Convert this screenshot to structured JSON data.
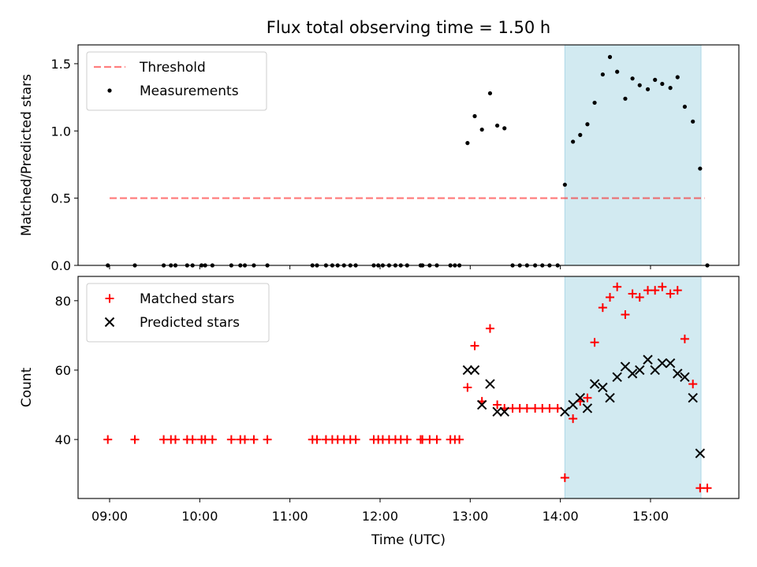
{
  "figure": {
    "title": "Flux total observing time = 1.50 h",
    "background": "#ffffff"
  },
  "colors": {
    "span": "#add8e6",
    "threshold": "#ff0000",
    "measurements": "#000000",
    "matched": "#ff0000",
    "predicted": "#000000"
  },
  "chart_data": [
    {
      "type": "scatter",
      "panel": "top",
      "title": "Flux total observing time = 1.50 h",
      "ylabel": "Matched/Predicted stars",
      "xlim": [
        8.65,
        15.98
      ],
      "ylim": [
        0.0,
        1.64
      ],
      "yticks": [
        0.0,
        0.5,
        1.0,
        1.5
      ],
      "ytick_labels": [
        "0.0",
        "0.5",
        "1.0",
        "1.5"
      ],
      "legend_position": "upper-left",
      "highlight_span": {
        "x_start": 14.05,
        "x_end": 15.56
      },
      "threshold": {
        "name": "Threshold",
        "value": 0.5,
        "x_start": 9.0,
        "x_end": 15.6,
        "style": "dashed"
      },
      "series": [
        {
          "name": "Measurements",
          "marker": "dot",
          "points": [
            [
              8.98,
              0
            ],
            [
              9.28,
              0
            ],
            [
              9.6,
              0
            ],
            [
              9.68,
              0
            ],
            [
              9.73,
              0
            ],
            [
              9.86,
              0
            ],
            [
              9.92,
              0
            ],
            [
              10.02,
              0
            ],
            [
              10.06,
              0
            ],
            [
              10.14,
              0
            ],
            [
              10.35,
              0
            ],
            [
              10.45,
              0
            ],
            [
              10.5,
              0
            ],
            [
              10.6,
              0
            ],
            [
              10.75,
              0
            ],
            [
              11.25,
              0
            ],
            [
              11.3,
              0
            ],
            [
              11.4,
              0
            ],
            [
              11.47,
              0
            ],
            [
              11.53,
              0
            ],
            [
              11.6,
              0
            ],
            [
              11.67,
              0
            ],
            [
              11.73,
              0
            ],
            [
              11.93,
              0
            ],
            [
              11.98,
              0
            ],
            [
              12.03,
              0
            ],
            [
              12.1,
              0
            ],
            [
              12.17,
              0
            ],
            [
              12.23,
              0
            ],
            [
              12.3,
              0
            ],
            [
              12.45,
              0
            ],
            [
              12.47,
              0
            ],
            [
              12.55,
              0
            ],
            [
              12.63,
              0
            ],
            [
              12.78,
              0
            ],
            [
              12.83,
              0
            ],
            [
              12.88,
              0
            ],
            [
              12.97,
              0.91
            ],
            [
              13.05,
              1.11
            ],
            [
              13.13,
              1.01
            ],
            [
              13.22,
              1.28
            ],
            [
              13.3,
              1.04
            ],
            [
              13.38,
              1.02
            ],
            [
              13.47,
              0
            ],
            [
              13.55,
              0
            ],
            [
              13.63,
              0
            ],
            [
              13.72,
              0
            ],
            [
              13.8,
              0
            ],
            [
              13.88,
              0
            ],
            [
              13.97,
              0
            ],
            [
              14.05,
              0.6
            ],
            [
              14.14,
              0.92
            ],
            [
              14.22,
              0.97
            ],
            [
              14.3,
              1.05
            ],
            [
              14.38,
              1.21
            ],
            [
              14.47,
              1.42
            ],
            [
              14.55,
              1.55
            ],
            [
              14.63,
              1.44
            ],
            [
              14.72,
              1.24
            ],
            [
              14.8,
              1.39
            ],
            [
              14.88,
              1.34
            ],
            [
              14.97,
              1.31
            ],
            [
              15.05,
              1.38
            ],
            [
              15.13,
              1.35
            ],
            [
              15.22,
              1.32
            ],
            [
              15.3,
              1.4
            ],
            [
              15.38,
              1.18
            ],
            [
              15.47,
              1.07
            ],
            [
              15.55,
              0.72
            ],
            [
              15.63,
              0
            ]
          ]
        }
      ]
    },
    {
      "type": "scatter",
      "panel": "bottom",
      "xlabel": "Time (UTC)",
      "ylabel": "Count",
      "xlim": [
        8.65,
        15.98
      ],
      "ylim": [
        23,
        87
      ],
      "yticks": [
        40,
        60,
        80
      ],
      "ytick_labels": [
        "40",
        "60",
        "80"
      ],
      "xticks": [
        9,
        10,
        11,
        12,
        13,
        14,
        15
      ],
      "xtick_labels": [
        "09:00",
        "10:00",
        "11:00",
        "12:00",
        "13:00",
        "14:00",
        "15:00"
      ],
      "legend_position": "upper-left",
      "highlight_span": {
        "x_start": 14.05,
        "x_end": 15.56
      },
      "series": [
        {
          "name": "Matched stars",
          "marker": "plus",
          "points": [
            [
              8.98,
              40
            ],
            [
              9.28,
              40
            ],
            [
              9.6,
              40
            ],
            [
              9.68,
              40
            ],
            [
              9.73,
              40
            ],
            [
              9.86,
              40
            ],
            [
              9.92,
              40
            ],
            [
              10.02,
              40
            ],
            [
              10.06,
              40
            ],
            [
              10.14,
              40
            ],
            [
              10.35,
              40
            ],
            [
              10.45,
              40
            ],
            [
              10.5,
              40
            ],
            [
              10.6,
              40
            ],
            [
              10.75,
              40
            ],
            [
              11.25,
              40
            ],
            [
              11.3,
              40
            ],
            [
              11.4,
              40
            ],
            [
              11.47,
              40
            ],
            [
              11.53,
              40
            ],
            [
              11.6,
              40
            ],
            [
              11.67,
              40
            ],
            [
              11.73,
              40
            ],
            [
              11.93,
              40
            ],
            [
              11.98,
              40
            ],
            [
              12.03,
              40
            ],
            [
              12.1,
              40
            ],
            [
              12.17,
              40
            ],
            [
              12.23,
              40
            ],
            [
              12.3,
              40
            ],
            [
              12.45,
              40
            ],
            [
              12.47,
              40
            ],
            [
              12.55,
              40
            ],
            [
              12.63,
              40
            ],
            [
              12.78,
              40
            ],
            [
              12.83,
              40
            ],
            [
              12.88,
              40
            ],
            [
              12.97,
              55
            ],
            [
              13.05,
              67
            ],
            [
              13.13,
              51
            ],
            [
              13.22,
              72
            ],
            [
              13.3,
              50
            ],
            [
              13.38,
              49
            ],
            [
              13.47,
              49
            ],
            [
              13.55,
              49
            ],
            [
              13.63,
              49
            ],
            [
              13.72,
              49
            ],
            [
              13.8,
              49
            ],
            [
              13.88,
              49
            ],
            [
              13.97,
              49
            ],
            [
              14.05,
              29
            ],
            [
              14.14,
              46
            ],
            [
              14.22,
              51
            ],
            [
              14.3,
              52
            ],
            [
              14.38,
              68
            ],
            [
              14.47,
              78
            ],
            [
              14.55,
              81
            ],
            [
              14.63,
              84
            ],
            [
              14.72,
              76
            ],
            [
              14.8,
              82
            ],
            [
              14.88,
              81
            ],
            [
              14.97,
              83
            ],
            [
              15.05,
              83
            ],
            [
              15.13,
              84
            ],
            [
              15.22,
              82
            ],
            [
              15.3,
              83
            ],
            [
              15.38,
              69
            ],
            [
              15.47,
              56
            ],
            [
              15.55,
              26
            ],
            [
              15.63,
              26
            ]
          ]
        },
        {
          "name": "Predicted stars",
          "marker": "x",
          "points": [
            [
              12.97,
              60
            ],
            [
              13.05,
              60
            ],
            [
              13.13,
              50
            ],
            [
              13.22,
              56
            ],
            [
              13.3,
              48
            ],
            [
              13.38,
              48
            ],
            [
              14.05,
              48
            ],
            [
              14.14,
              50
            ],
            [
              14.22,
              52
            ],
            [
              14.3,
              49
            ],
            [
              14.38,
              56
            ],
            [
              14.47,
              55
            ],
            [
              14.55,
              52
            ],
            [
              14.63,
              58
            ],
            [
              14.72,
              61
            ],
            [
              14.8,
              59
            ],
            [
              14.88,
              60
            ],
            [
              14.97,
              63
            ],
            [
              15.05,
              60
            ],
            [
              15.13,
              62
            ],
            [
              15.22,
              62
            ],
            [
              15.3,
              59
            ],
            [
              15.38,
              58
            ],
            [
              15.47,
              52
            ],
            [
              15.55,
              36
            ]
          ]
        }
      ]
    }
  ]
}
